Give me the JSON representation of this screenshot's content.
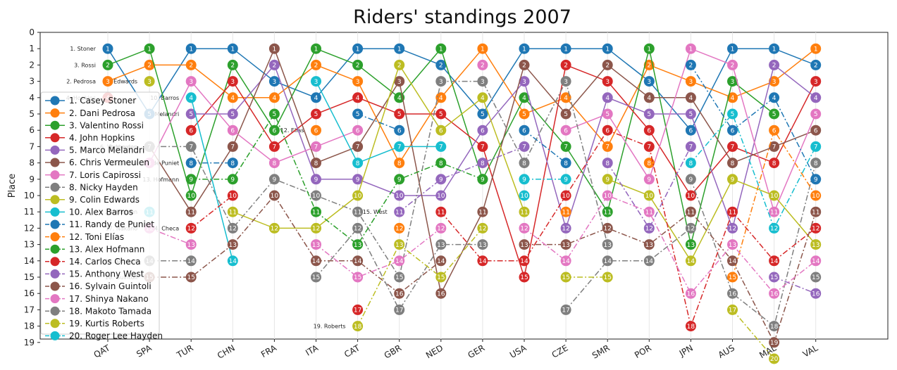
{
  "chart_data": {
    "type": "line",
    "title": "Riders' standings 2007",
    "xlabel": "",
    "ylabel": "Place",
    "categories": [
      "QAT",
      "SPA",
      "TUR",
      "CHN",
      "FRA",
      "ITA",
      "CAT",
      "GBR",
      "NED",
      "GER",
      "USA",
      "CZE",
      "SMR",
      "POR",
      "JPN",
      "AUS",
      "MAL",
      "VAL"
    ],
    "yticks": [
      "0",
      "1",
      "2",
      "3",
      "4",
      "5",
      "6",
      "7",
      "8",
      "9",
      "10",
      "11",
      "12",
      "13",
      "14",
      "15",
      "16",
      "17",
      "18",
      "19"
    ],
    "ylim": [
      0,
      19
    ],
    "colors": {
      "c0": "#1f77b4",
      "c1": "#ff7f0e",
      "c2": "#2ca02c",
      "c3": "#d62728",
      "c4": "#9467bd",
      "c5": "#8c564b",
      "c6": "#e377c2",
      "c7": "#7f7f7f",
      "c8": "#bcbd22",
      "c9": "#17becf"
    },
    "series": [
      {
        "name": "1. Casey Stoner",
        "short": "1. Stoner",
        "color": "#1f77b4",
        "style": "solid",
        "values": [
          1,
          5,
          1,
          1,
          3,
          4,
          1,
          1,
          2,
          5,
          1,
          1,
          1,
          3,
          6,
          1,
          1,
          2
        ]
      },
      {
        "name": "2. Dani Pedrosa",
        "short": "2. Pedrosa",
        "color": "#ff7f0e",
        "style": "solid",
        "values": [
          3,
          2,
          2,
          4,
          4,
          2,
          3,
          8,
          4,
          1,
          5,
          4,
          7,
          2,
          3,
          4,
          3,
          1
        ]
      },
      {
        "name": "3. Valentino Rossi",
        "short": "3. Rossi",
        "color": "#2ca02c",
        "style": "solid",
        "values": [
          2,
          1,
          10,
          2,
          6,
          1,
          2,
          4,
          1,
          9,
          4,
          7,
          11,
          1,
          13,
          3,
          5,
          null
        ]
      },
      {
        "name": "4. John Hopkins",
        "short": "4. Hopkins",
        "color": "#d62728",
        "style": "solid",
        "values": [
          4,
          null,
          6,
          3,
          7,
          5,
          4,
          5,
          5,
          7,
          15,
          2,
          3,
          6,
          10,
          7,
          8,
          3
        ]
      },
      {
        "name": "5. Marco Melandri",
        "short": "5. Melandri",
        "color": "#9467bd",
        "style": "solid",
        "values": [
          null,
          null,
          5,
          5,
          2,
          9,
          9,
          10,
          10,
          6,
          3,
          12,
          4,
          5,
          5,
          12,
          2,
          4
        ]
      },
      {
        "name": "6. Chris Vermeulen",
        "short": "6. Vermeulen",
        "color": "#8c564b",
        "style": "solid",
        "values": [
          null,
          7,
          11,
          7,
          1,
          8,
          7,
          3,
          16,
          11,
          2,
          5,
          2,
          4,
          4,
          8,
          7,
          6
        ]
      },
      {
        "name": "7. Loris Capirossi",
        "short": "7. Capirossi",
        "color": "#e377c2",
        "style": "solid",
        "values": [
          null,
          8,
          3,
          6,
          8,
          7,
          6,
          null,
          null,
          2,
          null,
          6,
          5,
          9,
          1,
          2,
          11,
          5
        ]
      },
      {
        "name": "8. Nicky Hayden",
        "short": "8. Hayden",
        "color": "#7f7f7f",
        "style": "dashdot",
        "values": [
          null,
          7,
          7,
          12,
          9,
          10,
          11,
          15,
          3,
          3,
          8,
          3,
          13,
          null,
          9,
          16,
          18,
          8
        ]
      },
      {
        "name": "9. Colin Edwards",
        "short": "9. Edwards",
        "color": "#bcbd22",
        "style": "solid",
        "values": [
          null,
          3,
          null,
          11,
          12,
          12,
          10,
          2,
          6,
          4,
          11,
          null,
          9,
          10,
          14,
          9,
          10,
          13
        ]
      },
      {
        "name": "10. Alex Barros",
        "short": "10. Barros",
        "color": "#17becf",
        "style": "solid",
        "values": [
          null,
          null,
          4,
          14,
          null,
          3,
          8,
          7,
          7,
          null,
          10,
          null,
          null,
          null,
          null,
          null,
          null,
          null
        ]
      },
      {
        "name": "11. Randy de Puniet",
        "short": "11. de Puniet",
        "color": "#1f77b4",
        "style": "dashdot",
        "values": [
          null,
          null,
          8,
          8,
          null,
          null,
          5,
          6,
          null,
          null,
          6,
          8,
          null,
          null,
          2,
          6,
          4,
          9
        ]
      },
      {
        "name": "12. Toni Elías",
        "short": "12. Elías",
        "color": "#ff7f0e",
        "style": "dashdot",
        "values": [
          null,
          null,
          null,
          null,
          null,
          6,
          null,
          12,
          null,
          null,
          null,
          11,
          null,
          8,
          null,
          15,
          6,
          10
        ]
      },
      {
        "name": "13. Alex Hofmann",
        "short": "13. Hofmann",
        "color": "#2ca02c",
        "style": "dashdot",
        "values": [
          null,
          null,
          9,
          9,
          5,
          11,
          13,
          9,
          8,
          9,
          null,
          null,
          null,
          null,
          null,
          null,
          null,
          null
        ]
      },
      {
        "name": "14. Carlos Checa",
        "short": "14. Checa",
        "color": "#d62728",
        "style": "dashdot",
        "values": [
          null,
          null,
          12,
          10,
          null,
          null,
          17,
          null,
          11,
          14,
          14,
          10,
          6,
          7,
          18,
          11,
          14,
          12
        ]
      },
      {
        "name": "15. Anthony West",
        "short": "15. West",
        "color": "#9467bd",
        "style": "dashdot",
        "values": [
          null,
          null,
          null,
          null,
          null,
          null,
          null,
          11,
          9,
          8,
          7,
          null,
          8,
          12,
          7,
          null,
          15,
          16
        ]
      },
      {
        "name": "16. Sylvain Guintoli",
        "short": "16. Guintoli",
        "color": "#8c564b",
        "style": "dashdot",
        "values": [
          null,
          15,
          15,
          13,
          10,
          14,
          14,
          16,
          14,
          null,
          13,
          13,
          12,
          13,
          11,
          14,
          19,
          11
        ]
      },
      {
        "name": "17. Shinya Nakano",
        "short": "17. Nakano",
        "color": "#e377c2",
        "style": "dashdot",
        "values": [
          null,
          12,
          13,
          null,
          null,
          13,
          15,
          14,
          12,
          null,
          12,
          14,
          10,
          11,
          16,
          13,
          16,
          14
        ]
      },
      {
        "name": "18. Makoto Tamada",
        "short": "18. Tamada",
        "color": "#7f7f7f",
        "style": "dashdot",
        "values": [
          null,
          14,
          14,
          null,
          null,
          15,
          12,
          17,
          13,
          13,
          null,
          17,
          14,
          14,
          12,
          null,
          null,
          15
        ]
      },
      {
        "name": "19. Kurtis Roberts",
        "short": "19. Roberts",
        "color": "#bcbd22",
        "style": "dashdot",
        "values": [
          null,
          null,
          null,
          null,
          null,
          null,
          18,
          13,
          15,
          12,
          null,
          15,
          15,
          null,
          null,
          17,
          20,
          null
        ]
      },
      {
        "name": "20. Roger Lee Hayden",
        "short": "20. Hayden",
        "color": "#17becf",
        "style": "dashdot",
        "values": [
          null,
          11,
          null,
          null,
          null,
          null,
          null,
          null,
          null,
          null,
          9,
          9,
          null,
          null,
          8,
          5,
          12,
          7
        ]
      }
    ],
    "legend": {
      "location": "lower-left"
    },
    "grid": "x"
  }
}
